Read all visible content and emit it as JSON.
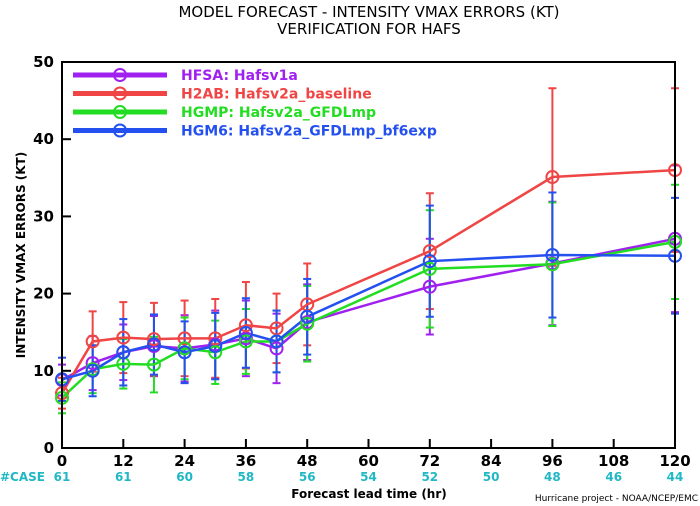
{
  "chart_data": {
    "type": "line",
    "title": "MODEL FORECAST - INTENSITY VMAX ERRORS (KT)",
    "subtitle": "VERIFICATION FOR HAFS",
    "xlabel": "Forecast lead time (hr)",
    "ylabel": "INTENSITY VMAX ERRORS (KT)",
    "xlim": [
      0,
      120
    ],
    "ylim": [
      0,
      50
    ],
    "xticks": [
      0,
      12,
      24,
      36,
      48,
      60,
      72,
      84,
      96,
      108,
      120
    ],
    "yticks": [
      0,
      10,
      20,
      30,
      40,
      50
    ],
    "case_label": "#CASE",
    "case_hours": [
      0,
      12,
      24,
      36,
      48,
      60,
      72,
      84,
      96,
      108,
      120
    ],
    "case_counts": [
      "61",
      "61",
      "60",
      "58",
      "56",
      "54",
      "52",
      "50",
      "48",
      "46",
      "44"
    ],
    "credit": "Hurricane project - NOAA/NCEP/EMC",
    "legend_position": "top-left",
    "grid": false,
    "series": [
      {
        "name": "HFSA: Hafsv1a",
        "color": "#a020f0",
        "x": [
          0,
          6,
          12,
          18,
          24,
          30,
          36,
          42,
          48,
          72,
          96,
          120
        ],
        "y": [
          8.8,
          11.0,
          12.4,
          13.2,
          12.9,
          13.4,
          14.2,
          12.9,
          16.3,
          20.9,
          23.9,
          27.1
        ],
        "err": [
          2.0,
          3.5,
          3.6,
          3.9,
          4.3,
          4.4,
          4.9,
          4.5,
          4.9,
          6.2,
          8.0,
          9.5
        ]
      },
      {
        "name": "H2AB: Hafsv2a_baseline",
        "color": "#f04545",
        "x": [
          0,
          6,
          12,
          18,
          24,
          30,
          36,
          42,
          48,
          72,
          96,
          120
        ],
        "y": [
          7.1,
          13.8,
          14.3,
          14.1,
          14.2,
          14.2,
          15.9,
          15.5,
          18.6,
          25.5,
          35.1,
          36.0
        ],
        "err": [
          2.0,
          3.9,
          4.6,
          4.7,
          4.9,
          5.1,
          5.6,
          4.5,
          5.3,
          7.5,
          11.5,
          10.6
        ]
      },
      {
        "name": "HGMP: Hafsv2a_GFDLmp",
        "color": "#22dd22",
        "x": [
          0,
          6,
          12,
          18,
          24,
          30,
          36,
          42,
          48,
          72,
          96,
          120
        ],
        "y": [
          6.5,
          10.2,
          10.9,
          10.8,
          12.9,
          12.4,
          13.8,
          13.8,
          16.1,
          23.2,
          23.8,
          26.7
        ],
        "err": [
          2.0,
          3.1,
          3.2,
          3.6,
          4.0,
          4.1,
          4.2,
          4.0,
          4.9,
          7.6,
          8.0,
          7.4
        ]
      },
      {
        "name": "HGM6: Hafsv2a_GFDLmp_bf6exp",
        "color": "#2450f0",
        "x": [
          0,
          6,
          12,
          18,
          24,
          30,
          36,
          42,
          48,
          72,
          96,
          120
        ],
        "y": [
          8.9,
          10.0,
          12.4,
          13.4,
          12.4,
          13.2,
          14.9,
          13.8,
          17.0,
          24.2,
          25.0,
          24.9
        ],
        "err": [
          2.8,
          3.3,
          4.3,
          3.9,
          4.0,
          4.3,
          4.5,
          4.0,
          4.9,
          7.2,
          8.1,
          7.5
        ]
      }
    ]
  }
}
